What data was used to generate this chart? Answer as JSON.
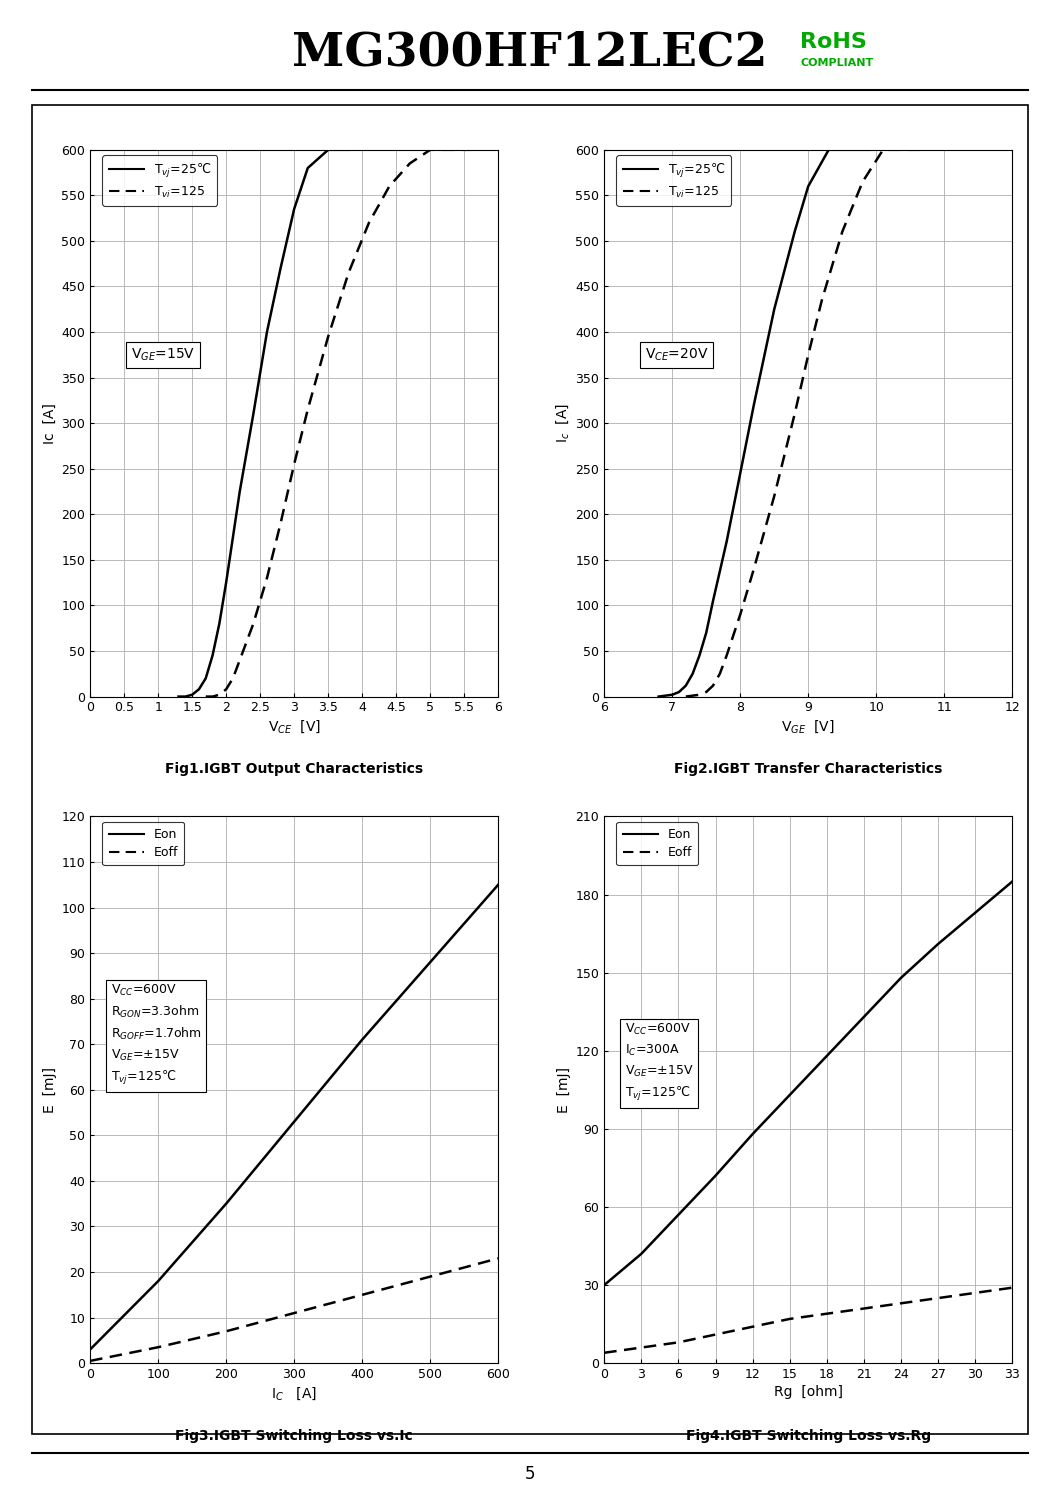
{
  "title": "MG300HF12LEC2",
  "rohs_color": "#00aa00",
  "page_number": "5",
  "fig1": {
    "xlabel": "V$_{CE}$  [V]",
    "ylabel": "Ic  [A]",
    "caption": "Fig1.IGBT Output Characteristics",
    "xlim": [
      0,
      6
    ],
    "ylim": [
      0,
      600
    ],
    "xticks": [
      0,
      0.5,
      1,
      1.5,
      2,
      2.5,
      3,
      3.5,
      4,
      4.5,
      5,
      5.5,
      6
    ],
    "xticklabels": [
      "0",
      "0.5",
      "1",
      "1.5",
      "2",
      "2.5",
      "3",
      "3.5",
      "4",
      "4.5",
      "5",
      "5.5",
      "6"
    ],
    "yticks": [
      0,
      50,
      100,
      150,
      200,
      250,
      300,
      350,
      400,
      450,
      500,
      550,
      600
    ],
    "legend1": "T$_{vj}$=25℃",
    "legend2": "T$_{vi}$=125",
    "ann_text": "V$_{GE}$=15V",
    "curve1_x": [
      1.3,
      1.4,
      1.5,
      1.6,
      1.7,
      1.8,
      1.9,
      2.0,
      2.1,
      2.2,
      2.4,
      2.6,
      2.8,
      3.0,
      3.2,
      3.5,
      3.8
    ],
    "curve1_y": [
      0,
      0,
      2,
      8,
      20,
      45,
      80,
      125,
      175,
      225,
      310,
      400,
      470,
      535,
      580,
      600,
      600
    ],
    "curve2_x": [
      1.7,
      1.8,
      1.9,
      2.0,
      2.1,
      2.2,
      2.4,
      2.6,
      2.8,
      3.0,
      3.2,
      3.5,
      3.8,
      4.1,
      4.4,
      4.7,
      5.0,
      5.3,
      5.6
    ],
    "curve2_y": [
      0,
      0,
      2,
      8,
      20,
      40,
      80,
      130,
      190,
      255,
      315,
      395,
      465,
      520,
      560,
      585,
      600,
      600,
      600
    ]
  },
  "fig2": {
    "xlabel": "V$_{GE}$  [V]",
    "ylabel": "I$_c$  [A]",
    "caption": "Fig2.IGBT Transfer Characteristics",
    "xlim": [
      6,
      12
    ],
    "ylim": [
      0,
      600
    ],
    "xticks": [
      6,
      7,
      8,
      9,
      10,
      11,
      12
    ],
    "xticklabels": [
      "6",
      "7",
      "8",
      "9",
      "10",
      "11",
      "12"
    ],
    "yticks": [
      0,
      50,
      100,
      150,
      200,
      250,
      300,
      350,
      400,
      450,
      500,
      550,
      600
    ],
    "legend1": "T$_{vj}$=25℃",
    "legend2": "T$_{vi}$=125",
    "ann_text": "V$_{CE}$=20V",
    "curve1_x": [
      6.8,
      7.0,
      7.1,
      7.2,
      7.3,
      7.4,
      7.5,
      7.6,
      7.8,
      8.0,
      8.2,
      8.5,
      8.8,
      9.0,
      9.3,
      9.6,
      9.9
    ],
    "curve1_y": [
      0,
      2,
      5,
      12,
      25,
      45,
      70,
      105,
      170,
      245,
      320,
      425,
      510,
      560,
      600,
      600,
      600
    ],
    "curve2_x": [
      7.2,
      7.4,
      7.5,
      7.6,
      7.7,
      7.8,
      8.0,
      8.2,
      8.5,
      8.8,
      9.0,
      9.2,
      9.5,
      9.8,
      10.1,
      10.4,
      10.7
    ],
    "curve2_y": [
      0,
      2,
      5,
      12,
      25,
      45,
      90,
      140,
      220,
      310,
      375,
      435,
      510,
      565,
      600,
      600,
      600
    ]
  },
  "fig3": {
    "xlabel": "I$_C$   [A]",
    "ylabel": "E  [mJ]",
    "caption": "Fig3.IGBT Switching Loss vs.Ic",
    "xlim": [
      0,
      600
    ],
    "ylim": [
      0,
      120
    ],
    "xticks": [
      0,
      100,
      200,
      300,
      400,
      500,
      600
    ],
    "yticks": [
      0,
      10,
      20,
      30,
      40,
      50,
      60,
      70,
      80,
      90,
      100,
      110,
      120
    ],
    "legend1": "Eon",
    "legend2": "Eoff",
    "ann_text": "V$_{CC}$=600V\nR$_{GON}$=3.3ohm\nR$_{GOFF}$=1.7ohm\nV$_{GE}$=±15V\nT$_{vj}$=125℃",
    "eon_x": [
      0,
      100,
      200,
      300,
      400,
      500,
      600
    ],
    "eon_y": [
      3,
      18,
      35,
      53,
      71,
      88,
      105
    ],
    "eoff_x": [
      0,
      100,
      200,
      300,
      400,
      500,
      600
    ],
    "eoff_y": [
      0.5,
      3.5,
      7,
      11,
      15,
      19,
      23
    ]
  },
  "fig4": {
    "xlabel": "Rg  [ohm]",
    "ylabel": "E  [mJ]",
    "caption": "Fig4.IGBT Switching Loss vs.Rg",
    "xlim": [
      0,
      33
    ],
    "ylim": [
      0,
      210
    ],
    "xticks": [
      0,
      3,
      6,
      9,
      12,
      15,
      18,
      21,
      24,
      27,
      30,
      33
    ],
    "yticks": [
      0,
      30,
      60,
      90,
      120,
      150,
      180,
      210
    ],
    "legend1": "Eon",
    "legend2": "Eoff",
    "ann_text": "V$_{CC}$=600V\nI$_C$=300A\nV$_{GE}$=±15V\nT$_{vj}$=125℃",
    "eon_x": [
      0,
      3,
      6,
      9,
      12,
      15,
      18,
      21,
      24,
      27,
      30,
      33
    ],
    "eon_y": [
      30,
      42,
      57,
      72,
      88,
      103,
      118,
      133,
      148,
      161,
      173,
      185
    ],
    "eoff_x": [
      0,
      3,
      6,
      9,
      12,
      15,
      18,
      21,
      24,
      27,
      30,
      33
    ],
    "eoff_y": [
      4,
      6,
      8,
      11,
      14,
      17,
      19,
      21,
      23,
      25,
      27,
      29
    ]
  }
}
